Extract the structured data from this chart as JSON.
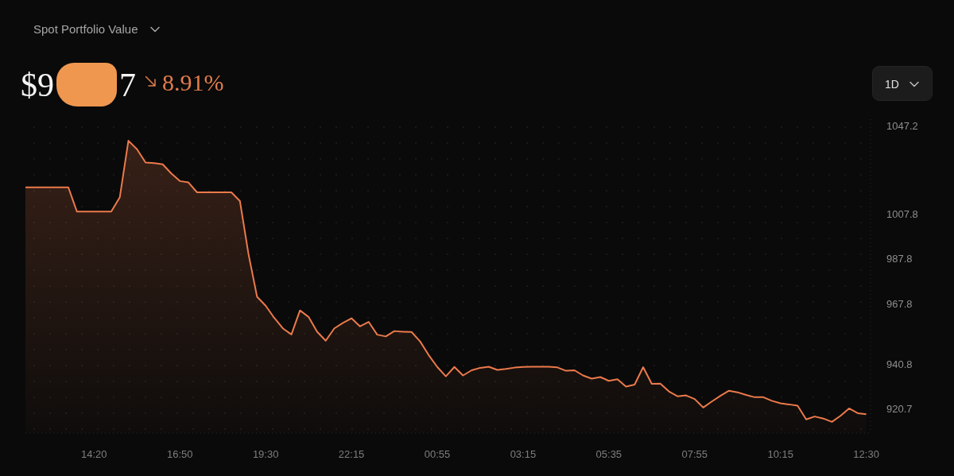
{
  "chart_data": {
    "type": "area",
    "title": "Spot Portfolio Value",
    "annotations": [
      "$9",
      "7",
      "8.91%",
      "1D"
    ],
    "categories": [
      null,
      null,
      null,
      null,
      null,
      null,
      null,
      null,
      "14:20",
      null,
      null,
      null,
      null,
      null,
      null,
      null,
      null,
      null,
      "16:50",
      null,
      null,
      null,
      null,
      null,
      null,
      null,
      null,
      null,
      "19:30",
      null,
      null,
      null,
      null,
      null,
      null,
      null,
      null,
      null,
      "22:15",
      null,
      null,
      null,
      null,
      null,
      null,
      null,
      null,
      null,
      "00:55",
      null,
      null,
      null,
      null,
      null,
      null,
      null,
      null,
      null,
      "03:15",
      null,
      null,
      null,
      null,
      null,
      null,
      null,
      null,
      null,
      "05:35",
      null,
      null,
      null,
      null,
      null,
      null,
      null,
      null,
      null,
      "07:55",
      null,
      null,
      null,
      null,
      null,
      null,
      null,
      null,
      null,
      "10:15",
      null,
      null,
      null,
      null,
      null,
      null,
      null,
      null,
      null,
      "12:30"
    ],
    "series": [
      {
        "color": "#ec7a4b",
        "values": [
          1019.6,
          1019.6,
          1019.6,
          1019.6,
          1019.6,
          1019.6,
          1008.8,
          1008.8,
          1008.8,
          1008.8,
          1008.8,
          1015.2,
          1040.4,
          1036.6,
          1030.7,
          1030.4,
          1029.9,
          1025.8,
          1022.4,
          1021.8,
          1017.4,
          1017.4,
          1017.4,
          1017.4,
          1017.4,
          1013.5,
          989.8,
          970.8,
          966.8,
          961.4,
          956.7,
          954.0,
          964.7,
          961.8,
          955.2,
          951.2,
          956.7,
          959.1,
          961.2,
          957.6,
          959.6,
          953.9,
          953.1,
          955.5,
          955.2,
          955.1,
          950.9,
          944.8,
          939.5,
          935.3,
          939.5,
          935.7,
          938.0,
          939.1,
          939.6,
          938.2,
          938.6,
          939.2,
          939.5,
          939.6,
          939.6,
          939.6,
          939.3,
          937.8,
          938.0,
          935.7,
          934.3,
          935.0,
          933.3,
          934.0,
          930.7,
          931.6,
          939.4,
          932.0,
          932.1,
          928.6,
          926.4,
          926.8,
          925.2,
          921.4,
          924.1,
          926.6,
          928.9,
          928.2,
          927.0,
          926.0,
          926.0,
          924.4,
          923.3,
          922.8,
          922.2,
          916.1,
          917.4,
          916.5,
          915.0,
          917.7,
          921.0,
          918.9,
          918.4
        ]
      }
    ],
    "ylim": [
      910,
      1050
    ],
    "yticks": [
      920.7,
      940.8,
      967.8,
      987.8,
      1007.8,
      1047.2
    ],
    "marker": "none",
    "line_style": "solid"
  }
}
